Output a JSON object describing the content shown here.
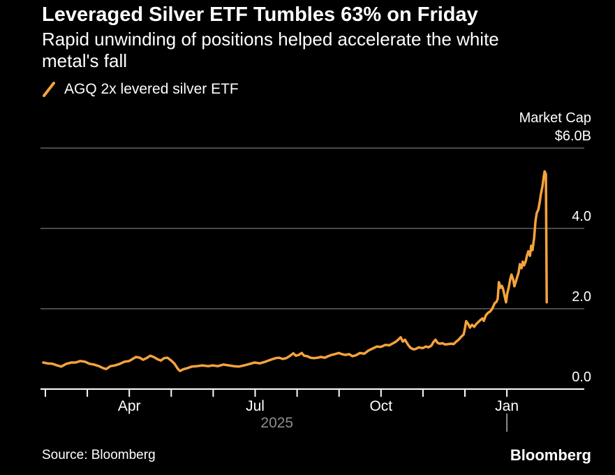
{
  "header": {
    "title": "Leveraged Silver ETF Tumbles 63% on Friday",
    "subtitle": "Rapid unwinding of positions helped accelerate the white metal's fall"
  },
  "legend": {
    "label": "AGQ 2x levered silver ETF",
    "marker": "orange-slash"
  },
  "footer": {
    "source": "Source: Bloomberg",
    "brand": "Bloomberg"
  },
  "colors": {
    "background": "#000000",
    "line_orange": "#F5A33C",
    "grid": "#4A4A4A",
    "axis": "#FFFFFF",
    "text": "#FFFFFF",
    "muted_text": "#8E8E8E"
  },
  "chart_data": {
    "type": "line",
    "title": "Leveraged Silver ETF Tumbles 63% on Friday",
    "ylabel": "Market Cap",
    "y_unit": "$B",
    "ylim": [
      0,
      6.0
    ],
    "grid": "horizontal-only",
    "y_ticks": [
      {
        "value": 6.0,
        "label": "$6.0B"
      },
      {
        "value": 4.0,
        "label": "4.0"
      },
      {
        "value": 2.0,
        "label": "2.0"
      },
      {
        "value": 0.0,
        "label": "0.0"
      }
    ],
    "x_unit": "month index (0 = Feb 2025, 11 = Jan 2026)",
    "x_ticks": [
      {
        "m": 0,
        "label": ""
      },
      {
        "m": 1,
        "label": ""
      },
      {
        "m": 2,
        "label": "Apr"
      },
      {
        "m": 3,
        "label": ""
      },
      {
        "m": 4,
        "label": ""
      },
      {
        "m": 5,
        "label": "Jul"
      },
      {
        "m": 6,
        "label": ""
      },
      {
        "m": 7,
        "label": ""
      },
      {
        "m": 8,
        "label": "Oct"
      },
      {
        "m": 9,
        "label": ""
      },
      {
        "m": 10,
        "label": ""
      },
      {
        "m": 11,
        "label": "Jan"
      }
    ],
    "year_label": {
      "label": "2025",
      "m": 5.52
    },
    "year_divider_m": 11,
    "series": [
      {
        "name": "AGQ 2x levered silver ETF",
        "color": "#F5A33C",
        "points": [
          [
            -0.05,
            0.66
          ],
          [
            0.05,
            0.64
          ],
          [
            0.17,
            0.63
          ],
          [
            0.28,
            0.59
          ],
          [
            0.38,
            0.56
          ],
          [
            0.5,
            0.63
          ],
          [
            0.62,
            0.66
          ],
          [
            0.72,
            0.66
          ],
          [
            0.83,
            0.7
          ],
          [
            0.95,
            0.68
          ],
          [
            1.05,
            0.63
          ],
          [
            1.16,
            0.61
          ],
          [
            1.28,
            0.57
          ],
          [
            1.38,
            0.52
          ],
          [
            1.45,
            0.5
          ],
          [
            1.55,
            0.57
          ],
          [
            1.66,
            0.59
          ],
          [
            1.78,
            0.63
          ],
          [
            1.88,
            0.68
          ],
          [
            2.0,
            0.7
          ],
          [
            2.08,
            0.75
          ],
          [
            2.16,
            0.8
          ],
          [
            2.25,
            0.78
          ],
          [
            2.33,
            0.73
          ],
          [
            2.41,
            0.77
          ],
          [
            2.5,
            0.83
          ],
          [
            2.58,
            0.8
          ],
          [
            2.66,
            0.75
          ],
          [
            2.75,
            0.71
          ],
          [
            2.83,
            0.77
          ],
          [
            2.91,
            0.78
          ],
          [
            3.0,
            0.71
          ],
          [
            3.08,
            0.63
          ],
          [
            3.16,
            0.5
          ],
          [
            3.21,
            0.45
          ],
          [
            3.28,
            0.49
          ],
          [
            3.38,
            0.52
          ],
          [
            3.49,
            0.56
          ],
          [
            3.61,
            0.57
          ],
          [
            3.74,
            0.59
          ],
          [
            3.88,
            0.57
          ],
          [
            3.99,
            0.59
          ],
          [
            4.11,
            0.57
          ],
          [
            4.24,
            0.61
          ],
          [
            4.38,
            0.59
          ],
          [
            4.49,
            0.57
          ],
          [
            4.61,
            0.56
          ],
          [
            4.74,
            0.59
          ],
          [
            4.88,
            0.63
          ],
          [
            4.99,
            0.66
          ],
          [
            5.11,
            0.64
          ],
          [
            5.24,
            0.68
          ],
          [
            5.37,
            0.73
          ],
          [
            5.49,
            0.77
          ],
          [
            5.57,
            0.78
          ],
          [
            5.66,
            0.75
          ],
          [
            5.74,
            0.77
          ],
          [
            5.82,
            0.82
          ],
          [
            5.91,
            0.89
          ],
          [
            5.97,
            0.83
          ],
          [
            6.04,
            0.85
          ],
          [
            6.11,
            0.9
          ],
          [
            6.17,
            0.83
          ],
          [
            6.24,
            0.82
          ],
          [
            6.32,
            0.78
          ],
          [
            6.41,
            0.77
          ],
          [
            6.49,
            0.78
          ],
          [
            6.57,
            0.8
          ],
          [
            6.66,
            0.78
          ],
          [
            6.74,
            0.82
          ],
          [
            6.82,
            0.85
          ],
          [
            6.9,
            0.87
          ],
          [
            6.99,
            0.9
          ],
          [
            7.07,
            0.87
          ],
          [
            7.15,
            0.85
          ],
          [
            7.24,
            0.87
          ],
          [
            7.32,
            0.82
          ],
          [
            7.4,
            0.84
          ],
          [
            7.5,
            0.9
          ],
          [
            7.6,
            0.88
          ],
          [
            7.7,
            0.96
          ],
          [
            7.8,
            1.01
          ],
          [
            7.9,
            1.06
          ],
          [
            8.0,
            1.05
          ],
          [
            8.1,
            1.1
          ],
          [
            8.2,
            1.09
          ],
          [
            8.27,
            1.13
          ],
          [
            8.34,
            1.17
          ],
          [
            8.4,
            1.22
          ],
          [
            8.47,
            1.29
          ],
          [
            8.52,
            1.18
          ],
          [
            8.57,
            1.23
          ],
          [
            8.64,
            1.11
          ],
          [
            8.7,
            1.03
          ],
          [
            8.77,
            0.99
          ],
          [
            8.83,
            1.0
          ],
          [
            8.9,
            1.04
          ],
          [
            8.99,
            1.02
          ],
          [
            9.07,
            1.06
          ],
          [
            9.13,
            1.04
          ],
          [
            9.2,
            1.08
          ],
          [
            9.25,
            1.17
          ],
          [
            9.3,
            1.23
          ],
          [
            9.35,
            1.15
          ],
          [
            9.4,
            1.13
          ],
          [
            9.47,
            1.14
          ],
          [
            9.53,
            1.11
          ],
          [
            9.6,
            1.12
          ],
          [
            9.67,
            1.13
          ],
          [
            9.73,
            1.12
          ],
          [
            9.78,
            1.17
          ],
          [
            9.85,
            1.23
          ],
          [
            9.9,
            1.29
          ],
          [
            9.97,
            1.36
          ],
          [
            10.0,
            1.51
          ],
          [
            10.03,
            1.69
          ],
          [
            10.08,
            1.62
          ],
          [
            10.12,
            1.53
          ],
          [
            10.17,
            1.6
          ],
          [
            10.22,
            1.55
          ],
          [
            10.27,
            1.62
          ],
          [
            10.32,
            1.67
          ],
          [
            10.37,
            1.72
          ],
          [
            10.42,
            1.76
          ],
          [
            10.45,
            1.7
          ],
          [
            10.5,
            1.84
          ],
          [
            10.55,
            1.9
          ],
          [
            10.6,
            1.93
          ],
          [
            10.65,
            2.0
          ],
          [
            10.68,
            2.07
          ],
          [
            10.71,
            2.14
          ],
          [
            10.75,
            2.17
          ],
          [
            10.78,
            2.24
          ],
          [
            10.81,
            2.66
          ],
          [
            10.85,
            2.52
          ],
          [
            10.88,
            2.57
          ],
          [
            10.91,
            2.49
          ],
          [
            10.95,
            2.3
          ],
          [
            10.98,
            2.16
          ],
          [
            11.01,
            2.38
          ],
          [
            11.05,
            2.56
          ],
          [
            11.08,
            2.73
          ],
          [
            11.11,
            2.85
          ],
          [
            11.15,
            2.73
          ],
          [
            11.18,
            2.56
          ],
          [
            11.21,
            2.66
          ],
          [
            11.25,
            2.8
          ],
          [
            11.28,
            2.9
          ],
          [
            11.31,
            3.11
          ],
          [
            11.35,
            3.01
          ],
          [
            11.38,
            3.17
          ],
          [
            11.41,
            3.08
          ],
          [
            11.45,
            3.18
          ],
          [
            11.48,
            3.32
          ],
          [
            11.51,
            3.43
          ],
          [
            11.55,
            3.32
          ],
          [
            11.58,
            3.57
          ],
          [
            11.61,
            3.46
          ],
          [
            11.65,
            3.77
          ],
          [
            11.68,
            4.16
          ],
          [
            11.71,
            4.38
          ],
          [
            11.75,
            4.47
          ],
          [
            11.78,
            4.64
          ],
          [
            11.81,
            4.85
          ],
          [
            11.85,
            5.06
          ],
          [
            11.88,
            5.3
          ],
          [
            11.9,
            5.42
          ],
          [
            11.93,
            5.35
          ],
          [
            11.95,
            2.16
          ]
        ]
      }
    ]
  }
}
